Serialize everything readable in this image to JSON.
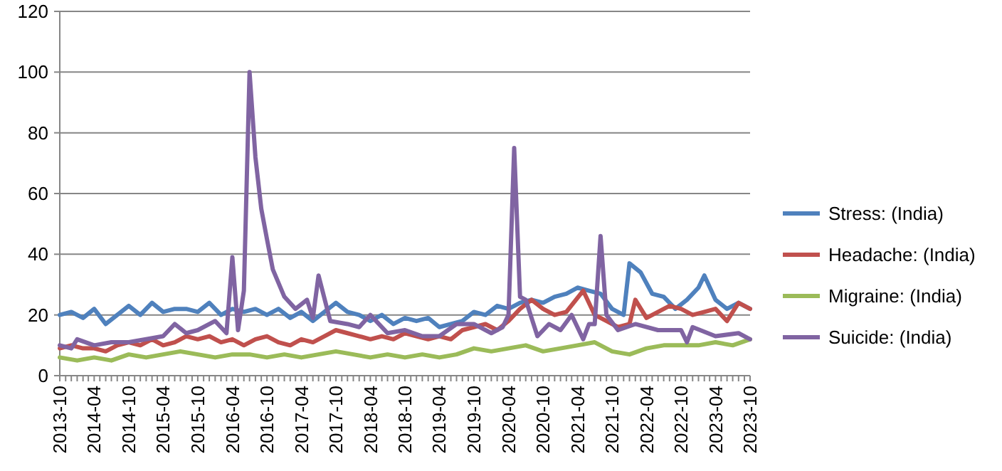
{
  "chart_data": {
    "type": "line",
    "xlim": [
      "2013-10",
      "2023-10"
    ],
    "ylim": [
      0,
      120
    ],
    "yticks": [
      0,
      20,
      40,
      60,
      80,
      100,
      120
    ],
    "xticks": [
      "2013-10",
      "2014-04",
      "2014-10",
      "2015-04",
      "2015-10",
      "2016-04",
      "2016-10",
      "2017-04",
      "2017-10",
      "2018-04",
      "2018-10",
      "2019-04",
      "2019-10",
      "2020-04",
      "2020-10",
      "2021-04",
      "2021-10",
      "2022-04",
      "2022-10",
      "2023-04",
      "2023-10"
    ],
    "grid": "y",
    "legend": "right",
    "line_style": "solid",
    "series": [
      {
        "name": "Stress: (India)",
        "color": "#4f81bd",
        "x": [
          "2013-10",
          "2013-12",
          "2014-02",
          "2014-04",
          "2014-06",
          "2014-08",
          "2014-10",
          "2014-12",
          "2015-02",
          "2015-04",
          "2015-06",
          "2015-08",
          "2015-10",
          "2015-12",
          "2016-02",
          "2016-04",
          "2016-06",
          "2016-08",
          "2016-10",
          "2016-12",
          "2017-02",
          "2017-04",
          "2017-06",
          "2017-08",
          "2017-10",
          "2017-12",
          "2018-02",
          "2018-04",
          "2018-06",
          "2018-08",
          "2018-10",
          "2018-12",
          "2019-02",
          "2019-04",
          "2019-06",
          "2019-08",
          "2019-10",
          "2019-12",
          "2020-02",
          "2020-04",
          "2020-06",
          "2020-08",
          "2020-10",
          "2020-12",
          "2021-02",
          "2021-04",
          "2021-06",
          "2021-08",
          "2021-10",
          "2021-12",
          "2022-01",
          "2022-03",
          "2022-05",
          "2022-07",
          "2022-09",
          "2022-11",
          "2023-01",
          "2023-02",
          "2023-04",
          "2023-06",
          "2023-08",
          "2023-10"
        ],
        "values": [
          20,
          21,
          19,
          22,
          17,
          20,
          23,
          20,
          24,
          21,
          22,
          22,
          21,
          24,
          20,
          22,
          21,
          22,
          20,
          22,
          19,
          21,
          18,
          21,
          24,
          21,
          20,
          18,
          20,
          17,
          19,
          18,
          19,
          16,
          17,
          18,
          21,
          20,
          23,
          22,
          24,
          25,
          24,
          26,
          27,
          29,
          28,
          27,
          22,
          20,
          37,
          34,
          27,
          26,
          22,
          25,
          29,
          33,
          25,
          22,
          24,
          22
        ]
      },
      {
        "name": "Headache: (India)",
        "color": "#c0504d",
        "x": [
          "2013-10",
          "2013-12",
          "2014-02",
          "2014-04",
          "2014-06",
          "2014-08",
          "2014-10",
          "2014-12",
          "2015-02",
          "2015-04",
          "2015-06",
          "2015-08",
          "2015-10",
          "2015-12",
          "2016-02",
          "2016-04",
          "2016-06",
          "2016-08",
          "2016-10",
          "2016-12",
          "2017-02",
          "2017-04",
          "2017-06",
          "2017-08",
          "2017-10",
          "2017-12",
          "2018-02",
          "2018-04",
          "2018-06",
          "2018-08",
          "2018-10",
          "2018-12",
          "2019-02",
          "2019-04",
          "2019-06",
          "2019-08",
          "2019-10",
          "2019-12",
          "2020-02",
          "2020-04",
          "2020-06",
          "2020-08",
          "2020-10",
          "2020-12",
          "2021-02",
          "2021-05",
          "2021-07",
          "2021-09",
          "2021-11",
          "2022-01",
          "2022-02",
          "2022-04",
          "2022-06",
          "2022-08",
          "2022-10",
          "2022-12",
          "2023-02",
          "2023-04",
          "2023-06",
          "2023-08",
          "2023-10"
        ],
        "values": [
          9,
          10,
          9,
          9,
          8,
          10,
          11,
          10,
          12,
          10,
          11,
          13,
          12,
          13,
          11,
          12,
          10,
          12,
          13,
          11,
          10,
          12,
          11,
          13,
          15,
          14,
          13,
          12,
          13,
          12,
          14,
          13,
          12,
          13,
          12,
          15,
          16,
          17,
          15,
          18,
          22,
          25,
          22,
          20,
          21,
          28,
          20,
          18,
          16,
          17,
          25,
          19,
          21,
          23,
          22,
          20,
          21,
          22,
          18,
          24,
          22
        ]
      },
      {
        "name": "Migraine: (India)",
        "color": "#9bbb59",
        "x": [
          "2013-10",
          "2014-01",
          "2014-04",
          "2014-07",
          "2014-10",
          "2015-01",
          "2015-04",
          "2015-07",
          "2015-10",
          "2016-01",
          "2016-04",
          "2016-07",
          "2016-10",
          "2017-01",
          "2017-04",
          "2017-07",
          "2017-10",
          "2018-01",
          "2018-04",
          "2018-07",
          "2018-10",
          "2019-01",
          "2019-04",
          "2019-07",
          "2019-10",
          "2020-01",
          "2020-04",
          "2020-07",
          "2020-10",
          "2021-01",
          "2021-04",
          "2021-07",
          "2021-10",
          "2022-01",
          "2022-04",
          "2022-07",
          "2022-10",
          "2023-01",
          "2023-04",
          "2023-07",
          "2023-10"
        ],
        "values": [
          6,
          5,
          6,
          5,
          7,
          6,
          7,
          8,
          7,
          6,
          7,
          7,
          6,
          7,
          6,
          7,
          8,
          7,
          6,
          7,
          6,
          7,
          6,
          7,
          9,
          8,
          9,
          10,
          8,
          9,
          10,
          11,
          8,
          7,
          9,
          10,
          10,
          10,
          11,
          10,
          12
        ]
      },
      {
        "name": "Suicide: (India)",
        "color": "#8064a2",
        "x": [
          "2013-10",
          "2013-12",
          "2014-01",
          "2014-04",
          "2014-07",
          "2014-10",
          "2015-01",
          "2015-04",
          "2015-06",
          "2015-08",
          "2015-10",
          "2016-01",
          "2016-03",
          "2016-04",
          "2016-05",
          "2016-06",
          "2016-07",
          "2016-08",
          "2016-09",
          "2016-10",
          "2016-11",
          "2017-01",
          "2017-03",
          "2017-05",
          "2017-06",
          "2017-07",
          "2017-09",
          "2017-12",
          "2018-02",
          "2018-04",
          "2018-07",
          "2018-10",
          "2019-01",
          "2019-04",
          "2019-07",
          "2019-10",
          "2020-01",
          "2020-03",
          "2020-04",
          "2020-05",
          "2020-06",
          "2020-07",
          "2020-09",
          "2020-11",
          "2021-01",
          "2021-03",
          "2021-05",
          "2021-06",
          "2021-07",
          "2021-08",
          "2021-09",
          "2021-11",
          "2022-02",
          "2022-06",
          "2022-10",
          "2022-11",
          "2022-12",
          "2023-04",
          "2023-08",
          "2023-10"
        ],
        "values": [
          10,
          9,
          12,
          10,
          11,
          11,
          12,
          13,
          17,
          14,
          15,
          18,
          14,
          39,
          15,
          28,
          100,
          72,
          55,
          45,
          35,
          26,
          22,
          25,
          19,
          33,
          18,
          17,
          16,
          20,
          14,
          15,
          13,
          13,
          17,
          17,
          14,
          16,
          20,
          75,
          26,
          25,
          13,
          17,
          15,
          20,
          12,
          17,
          17,
          46,
          20,
          15,
          17,
          15,
          15,
          11,
          16,
          13,
          14,
          12
        ]
      }
    ]
  }
}
